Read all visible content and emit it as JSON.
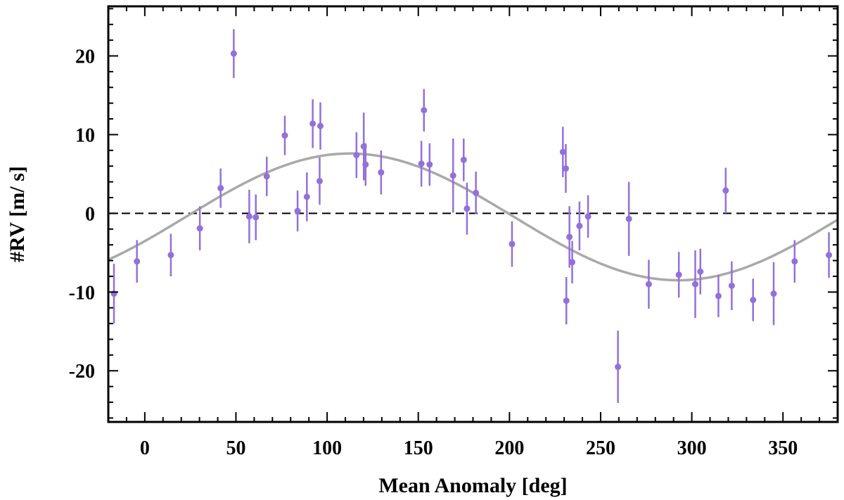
{
  "chart_data": {
    "type": "scatter",
    "xlabel": "Mean Anomaly [deg]",
    "ylabel": "#RV [m/ s]",
    "xlim": [
      -20,
      380
    ],
    "ylim": [
      -26.5,
      26.3
    ],
    "x_ticks": [
      0,
      50,
      100,
      150,
      200,
      250,
      300,
      350
    ],
    "x_tick_labels": [
      "0",
      "50",
      "100",
      "150",
      "200",
      "250",
      "300",
      "350"
    ],
    "y_ticks": [
      -20,
      -10,
      0,
      10,
      20
    ],
    "y_tick_labels": [
      "-20",
      "-10",
      "0",
      "10",
      "20"
    ],
    "reference_line": {
      "y": 0,
      "style": "dashed"
    },
    "colors": {
      "points": "#9370db",
      "model": "#a9a9a9",
      "axis": "#000000",
      "reference": "#000000"
    },
    "model": {
      "type": "sinusoid",
      "amplitude": 8.05,
      "offset": -0.45,
      "peak_x": 112.5
    },
    "points": [
      {
        "x": -16.9,
        "y": -10.2,
        "err": 3.8
      },
      {
        "x": -4.3,
        "y": -6.1,
        "err": 2.7
      },
      {
        "x": 14.3,
        "y": -5.3,
        "err": 2.7
      },
      {
        "x": 30.2,
        "y": -1.9,
        "err": 2.8
      },
      {
        "x": 41.6,
        "y": 3.2,
        "err": 2.5
      },
      {
        "x": 48.8,
        "y": 20.3,
        "err": 3.1
      },
      {
        "x": 57.3,
        "y": -0.4,
        "err": 3.4
      },
      {
        "x": 60.9,
        "y": -0.5,
        "err": 2.9
      },
      {
        "x": 66.9,
        "y": 4.7,
        "err": 2.5
      },
      {
        "x": 76.8,
        "y": 9.9,
        "err": 2.5
      },
      {
        "x": 83.8,
        "y": 0.3,
        "err": 2.6
      },
      {
        "x": 88.9,
        "y": 2.1,
        "err": 3.1
      },
      {
        "x": 92.1,
        "y": 11.4,
        "err": 3.1
      },
      {
        "x": 95.9,
        "y": 4.1,
        "err": 3.0
      },
      {
        "x": 96.3,
        "y": 11.1,
        "err": 3.0
      },
      {
        "x": 116.1,
        "y": 7.4,
        "err": 2.9
      },
      {
        "x": 120.1,
        "y": 8.5,
        "err": 4.3
      },
      {
        "x": 121.1,
        "y": 6.2,
        "err": 2.7
      },
      {
        "x": 129.6,
        "y": 5.2,
        "err": 2.8
      },
      {
        "x": 151.7,
        "y": 6.3,
        "err": 2.9
      },
      {
        "x": 153.1,
        "y": 13.1,
        "err": 2.7
      },
      {
        "x": 156.2,
        "y": 6.2,
        "err": 2.7
      },
      {
        "x": 169.1,
        "y": 4.8,
        "err": 4.7
      },
      {
        "x": 174.9,
        "y": 6.8,
        "err": 2.7
      },
      {
        "x": 176.7,
        "y": 0.6,
        "err": 3.3
      },
      {
        "x": 181.6,
        "y": 2.6,
        "err": 2.7
      },
      {
        "x": 201.4,
        "y": -3.9,
        "err": 2.9
      },
      {
        "x": 229.3,
        "y": 7.8,
        "err": 3.2
      },
      {
        "x": 230.9,
        "y": 5.7,
        "err": 3.1
      },
      {
        "x": 231.2,
        "y": -11.1,
        "err": 3.0
      },
      {
        "x": 232.9,
        "y": -3.0,
        "err": 3.9
      },
      {
        "x": 234.4,
        "y": -6.2,
        "err": 2.7
      },
      {
        "x": 238.4,
        "y": -1.6,
        "err": 3.1
      },
      {
        "x": 243.1,
        "y": -0.4,
        "err": 2.7
      },
      {
        "x": 259.5,
        "y": -19.5,
        "err": 4.6
      },
      {
        "x": 265.5,
        "y": -0.7,
        "err": 4.7
      },
      {
        "x": 276.4,
        "y": -9.0,
        "err": 3.1
      },
      {
        "x": 292.9,
        "y": -7.8,
        "err": 2.9
      },
      {
        "x": 301.9,
        "y": -9.0,
        "err": 4.3
      },
      {
        "x": 304.7,
        "y": -7.4,
        "err": 2.9
      },
      {
        "x": 314.6,
        "y": -10.5,
        "err": 2.7
      },
      {
        "x": 318.6,
        "y": 2.9,
        "err": 2.9
      },
      {
        "x": 321.9,
        "y": -9.2,
        "err": 3.1
      },
      {
        "x": 333.6,
        "y": -11.0,
        "err": 2.7
      },
      {
        "x": 344.9,
        "y": -10.2,
        "err": 4.0
      },
      {
        "x": 356.4,
        "y": -6.1,
        "err": 2.7
      },
      {
        "x": 375.2,
        "y": -5.3,
        "err": 2.9
      }
    ]
  }
}
